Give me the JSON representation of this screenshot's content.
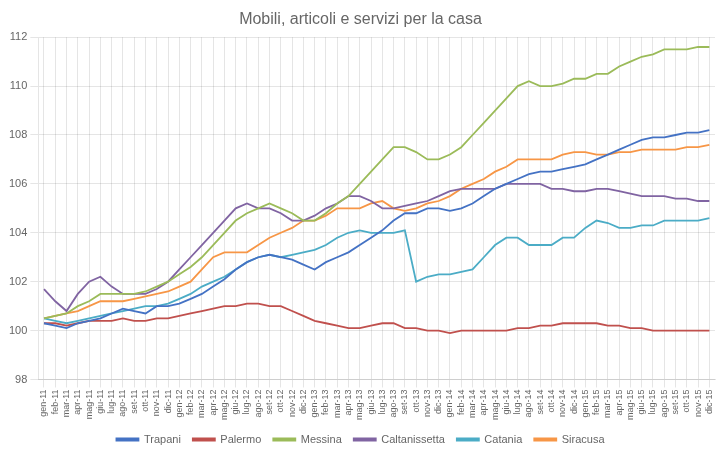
{
  "chart_data": {
    "type": "line",
    "title": "Mobili, articoli e servizi per la casa",
    "categories": [
      "gen-11",
      "feb-11",
      "mar-11",
      "apr-11",
      "mag-11",
      "giu-11",
      "lug-11",
      "ago-11",
      "set-11",
      "ott-11",
      "nov-11",
      "dic-11",
      "gen-12",
      "feb-12",
      "mar-12",
      "apr-12",
      "mag-12",
      "giu-12",
      "lug-12",
      "ago-12",
      "set-12",
      "ott-12",
      "nov-12",
      "dic-12",
      "gen-13",
      "feb-13",
      "mar-13",
      "apr-13",
      "mag-13",
      "giu-13",
      "lug-13",
      "ago-13",
      "set-13",
      "ott-13",
      "nov-13",
      "dic-13",
      "gen-14",
      "feb-14",
      "mar-14",
      "apr-14",
      "mag-14",
      "giu-14",
      "lug-14",
      "ago-14",
      "set-14",
      "ott-14",
      "nov-14",
      "dic-14",
      "gen-15",
      "feb-15",
      "mar-15",
      "apr-15",
      "mag-15",
      "giu-15",
      "lug-15",
      "ago-15",
      "set-15",
      "ott-15",
      "nov-15",
      "dic-15"
    ],
    "series": [
      {
        "name": "Trapani",
        "color": "#4472C4",
        "values": [
          100.3,
          100.2,
          100.1,
          100.3,
          100.4,
          100.5,
          100.7,
          100.9,
          100.8,
          100.7,
          101.0,
          101.0,
          101.1,
          101.3,
          101.5,
          101.8,
          102.1,
          102.5,
          102.8,
          103.0,
          103.1,
          103.0,
          102.9,
          102.7,
          102.5,
          102.8,
          103.0,
          103.2,
          103.5,
          103.8,
          104.1,
          104.5,
          104.8,
          104.8,
          105.0,
          105.0,
          104.9,
          105.0,
          105.2,
          105.5,
          105.8,
          106.0,
          106.2,
          106.4,
          106.5,
          106.5,
          106.6,
          106.7,
          106.8,
          107.0,
          107.2,
          107.4,
          107.6,
          107.8,
          107.9,
          107.9,
          108.0,
          108.1,
          108.1,
          108.2
        ]
      },
      {
        "name": "Palermo",
        "color": "#C0504D",
        "values": [
          100.3,
          100.3,
          100.2,
          100.3,
          100.4,
          100.4,
          100.4,
          100.5,
          100.4,
          100.4,
          100.5,
          100.5,
          100.6,
          100.7,
          100.8,
          100.9,
          101.0,
          101.0,
          101.1,
          101.1,
          101.0,
          101.0,
          100.8,
          100.6,
          100.4,
          100.3,
          100.2,
          100.1,
          100.1,
          100.2,
          100.3,
          100.3,
          100.1,
          100.1,
          100.0,
          100.0,
          99.9,
          100.0,
          100.0,
          100.0,
          100.0,
          100.0,
          100.1,
          100.1,
          100.2,
          100.2,
          100.3,
          100.3,
          100.3,
          100.3,
          100.2,
          100.2,
          100.1,
          100.1,
          100.0,
          100.0,
          100.0,
          100.0,
          100.0,
          100.0
        ]
      },
      {
        "name": "Messina",
        "color": "#9BBB59",
        "values": [
          100.5,
          100.6,
          100.7,
          101.0,
          101.2,
          101.5,
          101.5,
          101.5,
          101.5,
          101.6,
          101.8,
          102.0,
          102.3,
          102.6,
          103.0,
          103.5,
          104.0,
          104.5,
          104.8,
          105.0,
          105.2,
          105.0,
          104.8,
          104.5,
          104.5,
          104.8,
          105.2,
          105.5,
          106.0,
          106.5,
          107.0,
          107.5,
          107.5,
          107.3,
          107.0,
          107.0,
          107.2,
          107.5,
          108.0,
          108.5,
          109.0,
          109.5,
          110.0,
          110.2,
          110.0,
          110.0,
          110.1,
          110.3,
          110.3,
          110.5,
          110.5,
          110.8,
          111.0,
          111.2,
          111.3,
          111.5,
          111.5,
          111.5,
          111.6,
          111.6
        ]
      },
      {
        "name": "Caltanissetta",
        "color": "#8064A2",
        "values": [
          101.7,
          101.2,
          100.8,
          101.5,
          102.0,
          102.2,
          101.8,
          101.5,
          101.5,
          101.5,
          101.7,
          102.0,
          102.5,
          103.0,
          103.5,
          104.0,
          104.5,
          105.0,
          105.2,
          105.0,
          105.0,
          104.8,
          104.5,
          104.5,
          104.7,
          105.0,
          105.2,
          105.5,
          105.5,
          105.3,
          105.0,
          105.0,
          105.1,
          105.2,
          105.3,
          105.5,
          105.7,
          105.8,
          105.8,
          105.8,
          105.8,
          106.0,
          106.0,
          106.0,
          106.0,
          105.8,
          105.8,
          105.7,
          105.7,
          105.8,
          105.8,
          105.7,
          105.6,
          105.5,
          105.5,
          105.5,
          105.4,
          105.4,
          105.3,
          105.3
        ]
      },
      {
        "name": "Catania",
        "color": "#4BACC6",
        "values": [
          100.5,
          100.4,
          100.3,
          100.4,
          100.5,
          100.6,
          100.7,
          100.8,
          100.9,
          101.0,
          101.0,
          101.1,
          101.3,
          101.5,
          101.8,
          102.0,
          102.2,
          102.5,
          102.8,
          103.0,
          103.1,
          103.0,
          103.1,
          103.2,
          103.3,
          103.5,
          103.8,
          104.0,
          104.1,
          104.0,
          104.0,
          104.0,
          104.1,
          102.0,
          102.2,
          102.3,
          102.3,
          102.4,
          102.5,
          103.0,
          103.5,
          103.8,
          103.8,
          103.5,
          103.5,
          103.5,
          103.8,
          103.8,
          104.2,
          104.5,
          104.4,
          104.2,
          104.2,
          104.3,
          104.3,
          104.5,
          104.5,
          104.5,
          104.5,
          104.6
        ]
      },
      {
        "name": "Siracusa",
        "color": "#F79646",
        "values": [
          100.5,
          100.6,
          100.7,
          100.8,
          101.0,
          101.2,
          101.2,
          101.2,
          101.3,
          101.4,
          101.5,
          101.6,
          101.8,
          102.0,
          102.5,
          103.0,
          103.2,
          103.2,
          103.2,
          103.5,
          103.8,
          104.0,
          104.2,
          104.5,
          104.5,
          104.7,
          105.0,
          105.0,
          105.0,
          105.2,
          105.3,
          105.0,
          104.9,
          105.0,
          105.2,
          105.3,
          105.5,
          105.8,
          106.0,
          106.2,
          106.5,
          106.7,
          107.0,
          107.0,
          107.0,
          107.0,
          107.2,
          107.3,
          107.3,
          107.2,
          107.2,
          107.3,
          107.3,
          107.4,
          107.4,
          107.4,
          107.4,
          107.5,
          107.5,
          107.6
        ]
      }
    ],
    "ylim": [
      98,
      112
    ],
    "yticks": [
      98,
      100,
      102,
      104,
      106,
      108,
      110,
      112
    ],
    "grid": true,
    "legend": "bottom"
  }
}
